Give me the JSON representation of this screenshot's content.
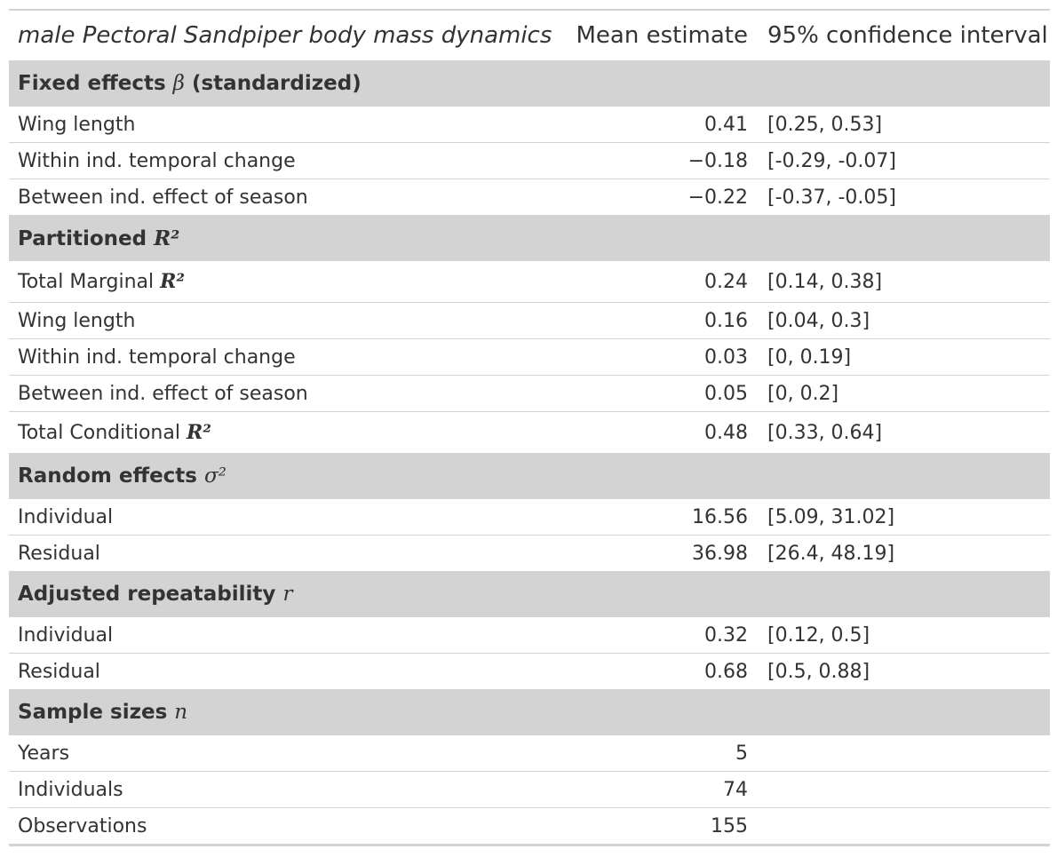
{
  "table": {
    "header": {
      "label": "male Pectoral Sandpiper body mass dynamics",
      "estimate": "Mean estimate",
      "ci": "95% confidence interval"
    },
    "groups": [
      {
        "title": "Fixed effects",
        "symbol": "β",
        "suffix": " (standardized)",
        "rows": [
          {
            "label": "Wing length",
            "estimate": "0.41",
            "ci": "[0.25, 0.53]"
          },
          {
            "label": "Within ind. temporal change",
            "estimate": "−0.18",
            "ci": "[-0.29, -0.07]"
          },
          {
            "label": "Between ind. effect of season",
            "estimate": "−0.22",
            "ci": "[-0.37, -0.05]"
          }
        ]
      },
      {
        "title": "Partitioned",
        "symbol": "R²",
        "suffix": "",
        "rows": [
          {
            "label": "Total Marginal",
            "symbol": "R²",
            "estimate": "0.24",
            "ci": "[0.14, 0.38]"
          },
          {
            "label": "Wing length",
            "estimate": "0.16",
            "ci": "[0.04, 0.3]"
          },
          {
            "label": "Within ind. temporal change",
            "estimate": "0.03",
            "ci": "[0, 0.19]"
          },
          {
            "label": "Between ind. effect of season",
            "estimate": "0.05",
            "ci": "[0, 0.2]"
          },
          {
            "label": "Total Conditional",
            "symbol": "R²",
            "estimate": "0.48",
            "ci": "[0.33, 0.64]"
          }
        ]
      },
      {
        "title": "Random effects",
        "symbol": "σ²",
        "suffix": "",
        "rows": [
          {
            "label": "Individual",
            "estimate": "16.56",
            "ci": "[5.09, 31.02]"
          },
          {
            "label": "Residual",
            "estimate": "36.98",
            "ci": "[26.4, 48.19]"
          }
        ]
      },
      {
        "title": "Adjusted repeatability",
        "symbol": "r",
        "suffix": "",
        "rows": [
          {
            "label": "Individual",
            "estimate": "0.32",
            "ci": "[0.12, 0.5]"
          },
          {
            "label": "Residual",
            "estimate": "0.68",
            "ci": "[0.5, 0.88]"
          }
        ]
      },
      {
        "title": "Sample sizes",
        "symbol": "n",
        "suffix": "",
        "rows": [
          {
            "label": "Years",
            "estimate": "5",
            "ci": ""
          },
          {
            "label": "Individuals",
            "estimate": "74",
            "ci": ""
          },
          {
            "label": "Observations",
            "estimate": "155",
            "ci": ""
          }
        ]
      }
    ]
  }
}
